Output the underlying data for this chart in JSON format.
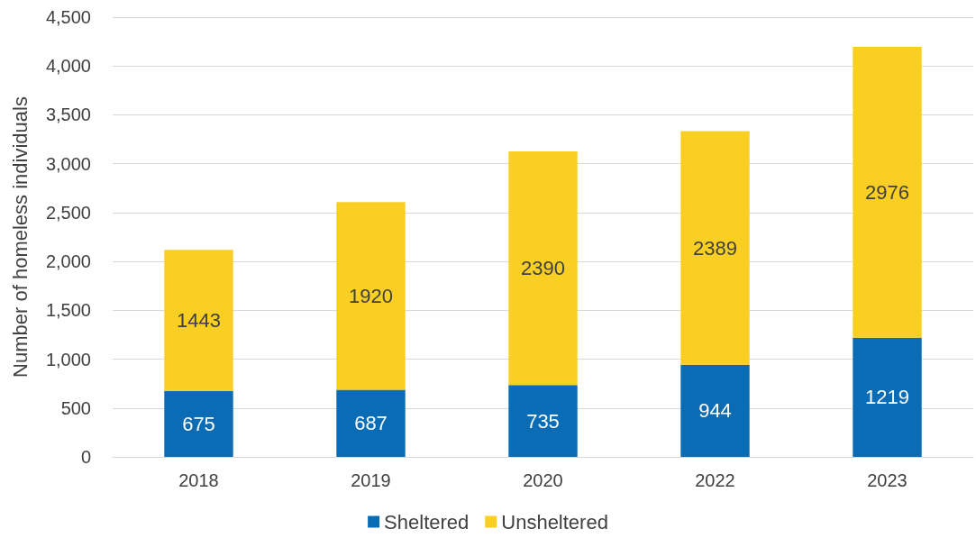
{
  "chart_data": {
    "type": "bar",
    "stacked": true,
    "ylabel": "Number of homeless individuals",
    "categories": [
      "2018",
      "2019",
      "2020",
      "2022",
      "2023"
    ],
    "series": [
      {
        "name": "Sheltered",
        "color": "#0a6cb4",
        "values": [
          675,
          687,
          735,
          944,
          1219
        ]
      },
      {
        "name": "Unsheltered",
        "color": "#f9cf24",
        "values": [
          1443,
          1920,
          2390,
          2389,
          2976
        ]
      }
    ],
    "ylim": [
      0,
      4500
    ],
    "yticks": [
      {
        "value": 0,
        "label": "0"
      },
      {
        "value": 500,
        "label": "500"
      },
      {
        "value": 1000,
        "label": "1,000"
      },
      {
        "value": 1500,
        "label": "1,500"
      },
      {
        "value": 2000,
        "label": "2,000"
      },
      {
        "value": 2500,
        "label": "2,500"
      },
      {
        "value": 3000,
        "label": "3,000"
      },
      {
        "value": 3500,
        "label": "3,500"
      },
      {
        "value": 4000,
        "label": "4,000"
      },
      {
        "value": 4500,
        "label": "4,500"
      }
    ],
    "grid": "y",
    "legend": "bottom",
    "data_labels": true
  }
}
